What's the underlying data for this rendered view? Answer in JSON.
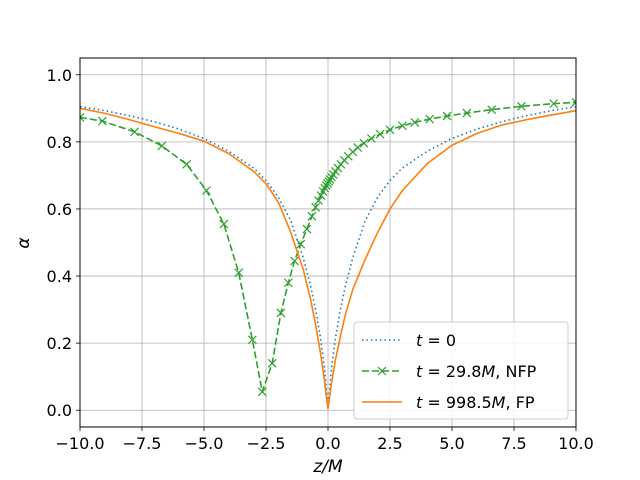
{
  "chart_data": {
    "type": "line",
    "xlabel": "z/M",
    "ylabel": "α",
    "xlim": [
      -10,
      10
    ],
    "ylim": [
      -0.05,
      1.05
    ],
    "xticks": [
      -10,
      -7.5,
      -5,
      -2.5,
      0,
      2.5,
      5,
      7.5,
      10
    ],
    "xtick_labels": [
      "−10.0",
      "−7.5",
      "−5.0",
      "−2.5",
      "0.0",
      "2.5",
      "5.0",
      "7.5",
      "10.0"
    ],
    "yticks": [
      0,
      0.2,
      0.4,
      0.6,
      0.8,
      1.0
    ],
    "ytick_labels": [
      "0.0",
      "0.2",
      "0.4",
      "0.6",
      "0.8",
      "1.0"
    ],
    "grid": true,
    "legend_position": "bottom-right",
    "series": [
      {
        "name": "t = 0",
        "legend_label": {
          "t": "t",
          "eq": " = 0",
          "suffix": ""
        },
        "color": "#1f77b4",
        "style": "dotted",
        "x": [
          -10,
          -9,
          -8,
          -7,
          -6,
          -5,
          -4,
          -3,
          -2.5,
          -2,
          -1.5,
          -1,
          -0.7,
          -0.5,
          -0.3,
          -0.15,
          -0.05,
          0,
          0.05,
          0.15,
          0.3,
          0.5,
          0.7,
          1,
          1.5,
          2,
          2.5,
          3,
          4,
          5,
          6,
          7,
          8,
          9,
          10
        ],
        "y": [
          0.905,
          0.893,
          0.878,
          0.86,
          0.838,
          0.81,
          0.772,
          0.722,
          0.685,
          0.635,
          0.565,
          0.455,
          0.37,
          0.3,
          0.215,
          0.13,
          0.05,
          0.01,
          0.05,
          0.13,
          0.215,
          0.3,
          0.37,
          0.455,
          0.565,
          0.635,
          0.685,
          0.722,
          0.772,
          0.81,
          0.838,
          0.86,
          0.878,
          0.893,
          0.905
        ]
      },
      {
        "name": "t = 29.8M, NFP",
        "legend_label": {
          "t": "t",
          "eq": " = 29.8",
          "m": "M",
          "suffix": ", NFP"
        },
        "color": "#2ca02c",
        "style": "dashed",
        "marker": "x",
        "x": [
          -10,
          -9.1,
          -7.8,
          -6.7,
          -5.7,
          -4.9,
          -4.2,
          -3.6,
          -3.05,
          -2.65,
          -2.25,
          -1.9,
          -1.6,
          -1.35,
          -1.1,
          -0.85,
          -0.65,
          -0.5,
          -0.38,
          -0.28,
          -0.2,
          -0.13,
          -0.07,
          -0.02,
          0.03,
          0.08,
          0.14,
          0.21,
          0.3,
          0.4,
          0.52,
          0.66,
          0.82,
          1.0,
          1.2,
          1.45,
          1.75,
          2.1,
          2.5,
          3.0,
          3.5,
          4.1,
          4.8,
          5.6,
          6.6,
          7.8,
          9.1,
          10
        ],
        "y": [
          0.873,
          0.862,
          0.83,
          0.788,
          0.733,
          0.655,
          0.555,
          0.41,
          0.21,
          0.055,
          0.14,
          0.29,
          0.38,
          0.445,
          0.495,
          0.54,
          0.578,
          0.605,
          0.625,
          0.64,
          0.652,
          0.662,
          0.67,
          0.676,
          0.682,
          0.688,
          0.695,
          0.703,
          0.712,
          0.722,
          0.733,
          0.745,
          0.757,
          0.77,
          0.783,
          0.796,
          0.81,
          0.823,
          0.836,
          0.848,
          0.858,
          0.868,
          0.877,
          0.886,
          0.896,
          0.906,
          0.914,
          0.918
        ]
      },
      {
        "name": "t = 998.5M, FP",
        "legend_label": {
          "t": "t",
          "eq": " = 998.5",
          "m": "M",
          "suffix": ", FP"
        },
        "color": "#ff7f0e",
        "style": "solid",
        "x": [
          -10,
          -9,
          -8,
          -7,
          -6,
          -5,
          -4,
          -3,
          -2.5,
          -2,
          -1.5,
          -1,
          -0.7,
          -0.5,
          -0.3,
          -0.15,
          -0.05,
          0,
          0.05,
          0.15,
          0.3,
          0.5,
          0.7,
          1,
          1.5,
          2,
          2.5,
          3,
          4,
          5,
          6,
          7,
          8,
          9,
          10
        ],
        "y": [
          0.9,
          0.885,
          0.866,
          0.845,
          0.825,
          0.802,
          0.765,
          0.712,
          0.675,
          0.62,
          0.53,
          0.42,
          0.33,
          0.255,
          0.17,
          0.095,
          0.03,
          0.005,
          0.03,
          0.085,
          0.15,
          0.22,
          0.285,
          0.36,
          0.45,
          0.53,
          0.6,
          0.655,
          0.735,
          0.79,
          0.825,
          0.85,
          0.866,
          0.88,
          0.893
        ]
      }
    ]
  }
}
